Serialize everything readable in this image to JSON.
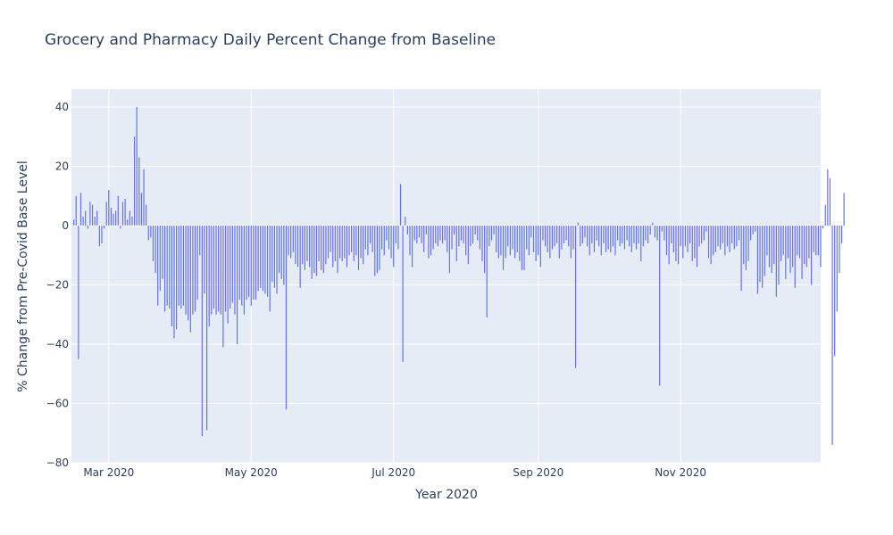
{
  "chart_data": {
    "type": "bar",
    "title": "Grocery and Pharmacy Daily Percent Change from Baseline",
    "xlabel": "Year 2020",
    "ylabel": "% Change from Pre-Covid Base Level",
    "x_start": "2020-02-15",
    "x_range": [
      "2020-02-14",
      "2020-12-31"
    ],
    "ylim": [
      -80,
      46
    ],
    "y_ticks": [
      40,
      20,
      0,
      -20,
      -40,
      -60,
      -80
    ],
    "y_tick_labels": [
      "40",
      "20",
      "0",
      "−20",
      "−40",
      "−60",
      "−80"
    ],
    "x_ticks": [
      {
        "date": "2020-03-01",
        "label": "Mar 2020"
      },
      {
        "date": "2020-05-01",
        "label": "May 2020"
      },
      {
        "date": "2020-07-01",
        "label": "Jul 2020"
      },
      {
        "date": "2020-09-01",
        "label": "Sep 2020"
      },
      {
        "date": "2020-11-01",
        "label": "Nov 2020"
      }
    ],
    "grid": true,
    "colors": {
      "bar": "#636efa",
      "plot_bg": "#e5ecf6",
      "grid": "#ffffff",
      "text": "#2a3f5f"
    },
    "values": [
      2,
      10,
      -45,
      11,
      3,
      5,
      -1,
      8,
      7,
      3,
      5,
      -7,
      -6,
      -1,
      8,
      12,
      6,
      4,
      5,
      10,
      -1,
      8,
      9,
      2,
      5,
      3,
      30,
      40,
      23,
      11,
      19,
      7,
      -5,
      -4,
      -12,
      -16,
      -27,
      -22,
      -18,
      -29,
      -27,
      -28,
      -34,
      -38,
      -35,
      -27,
      -28,
      -27,
      -30,
      -32,
      -36,
      -30,
      -29,
      -25,
      -10,
      -71,
      -23,
      -69,
      -34,
      -30,
      -28,
      -30,
      -29,
      -30,
      -41,
      -29,
      -33,
      -28,
      -26,
      -30,
      -40,
      -25,
      -27,
      -30,
      -25,
      -24,
      -27,
      -25,
      -25,
      -22,
      -21,
      -22,
      -23,
      -24,
      -29,
      -19,
      -21,
      -23,
      -16,
      -18,
      -20,
      -62,
      -10,
      -11,
      -9,
      -13,
      -14,
      -21,
      -13,
      -15,
      -12,
      -14,
      -18,
      -16,
      -17,
      -12,
      -15,
      -16,
      -13,
      -11,
      -9,
      -14,
      -12,
      -16,
      -11,
      -12,
      -11,
      -14,
      -10,
      -9,
      -12,
      -10,
      -15,
      -11,
      -13,
      -8,
      -10,
      -6,
      -9,
      -17,
      -16,
      -15,
      -8,
      -10,
      -5,
      -8,
      -11,
      -14,
      -6,
      -8,
      14,
      -46,
      3,
      -3,
      -10,
      -14,
      -5,
      -6,
      -4,
      -6,
      -9,
      -3,
      -11,
      -10,
      -8,
      -6,
      -7,
      -5,
      -6,
      -5,
      -9,
      -16,
      -8,
      -3,
      -12,
      -7,
      -5,
      -6,
      -10,
      -13,
      -7,
      -6,
      -3,
      -5,
      -8,
      -12,
      -16,
      -31,
      -7,
      -5,
      -3,
      -9,
      -11,
      -10,
      -15,
      -11,
      -7,
      -10,
      -8,
      -11,
      -9,
      -12,
      -15,
      -15,
      -8,
      -10,
      -4,
      -9,
      -12,
      -10,
      -14,
      -5,
      -7,
      -9,
      -11,
      -8,
      -7,
      -6,
      -11,
      -8,
      -6,
      -5,
      -7,
      -11,
      -8,
      -48,
      1,
      -7,
      -6,
      -4,
      -7,
      -10,
      -6,
      -9,
      -5,
      -7,
      -10,
      -6,
      -9,
      -8,
      -9,
      -7,
      -10,
      -5,
      -7,
      -6,
      -8,
      -5,
      -7,
      -9,
      -6,
      -8,
      -6,
      -12,
      -7,
      -5,
      -6,
      -3,
      1,
      -4,
      -5,
      -54,
      -2,
      -5,
      -10,
      -13,
      -6,
      -9,
      -12,
      -13,
      -7,
      -11,
      -7,
      -9,
      -6,
      -12,
      -11,
      -14,
      -7,
      -6,
      -5,
      -2,
      -11,
      -13,
      -10,
      -9,
      -7,
      -8,
      -6,
      -10,
      -7,
      -9,
      -6,
      -8,
      -7,
      -5,
      -22,
      -13,
      -15,
      -12,
      -5,
      -3,
      -2,
      -23,
      -19,
      -21,
      -17,
      -10,
      -14,
      -16,
      -13,
      -24,
      -20,
      -12,
      -10,
      -18,
      -11,
      -16,
      -14,
      -21,
      -10,
      -11,
      -18,
      -13,
      -14,
      -11,
      -20,
      -9,
      -10,
      -10,
      -14,
      -1,
      7,
      19,
      16,
      -74,
      -44,
      -29,
      -16,
      -6,
      11
    ]
  }
}
